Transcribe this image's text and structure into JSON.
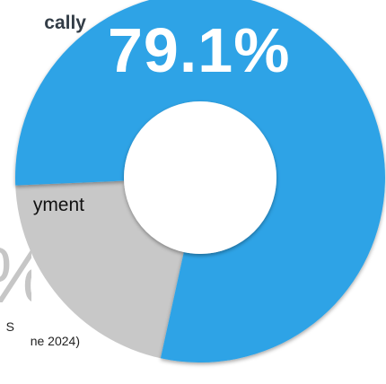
{
  "headline": "cally",
  "label_tag": "yment",
  "source": [
    "S",
    "ne 2024)"
  ],
  "colors": {
    "primary": "#2ea3e6",
    "secondary": "#c8c8c8",
    "headline": "#333d47",
    "muted_text": "#c6c6c6"
  },
  "chart_data": {
    "type": "pie",
    "donut": true,
    "slices": [
      {
        "label": "",
        "value": 79.1,
        "display": "79.1%",
        "color": "#2ea3e6"
      },
      {
        "label": "yment",
        "value": 20.9,
        "display": "%",
        "color": "#c8c8c8"
      }
    ]
  }
}
